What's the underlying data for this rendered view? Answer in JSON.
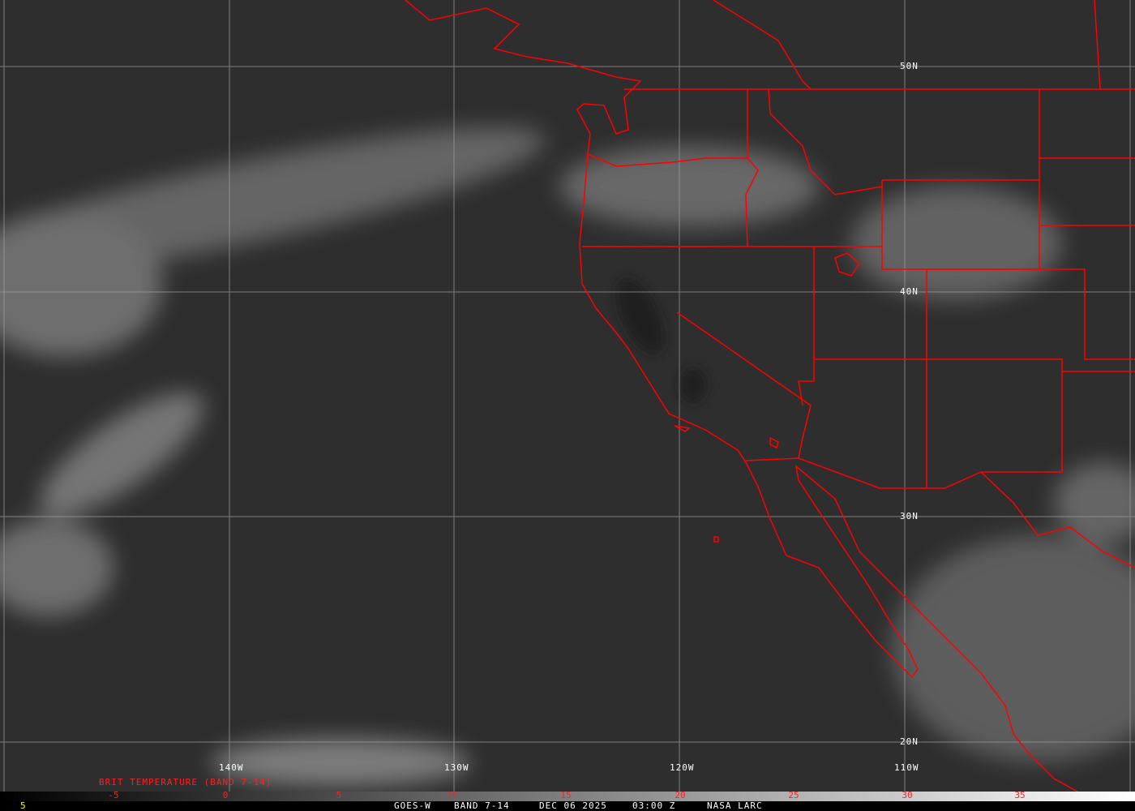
{
  "image": {
    "satellite": "GOES-W",
    "band": "BAND 7-14",
    "date": "DEC 06 2025",
    "time": "03:00 Z",
    "source": "NASA LARC"
  },
  "legend_title": "BRIT TEMPERATURE (BAND 7-14)",
  "frame_number": "5",
  "latitude_labels": [
    "50N",
    "40N",
    "30N",
    "20N"
  ],
  "longitude_labels": [
    "140W",
    "130W",
    "120W",
    "110W"
  ],
  "colorbar": {
    "ticks": [
      "-5",
      "0",
      "5",
      "10",
      "15",
      "20",
      "25",
      "30",
      "35"
    ],
    "colormap": [
      "#000000",
      "#ffffff"
    ]
  },
  "colors": {
    "borders": "#ff0000",
    "grid": "#a0a0a0",
    "tick_labels": "#ff2020",
    "frame_number": "#ffff00"
  }
}
